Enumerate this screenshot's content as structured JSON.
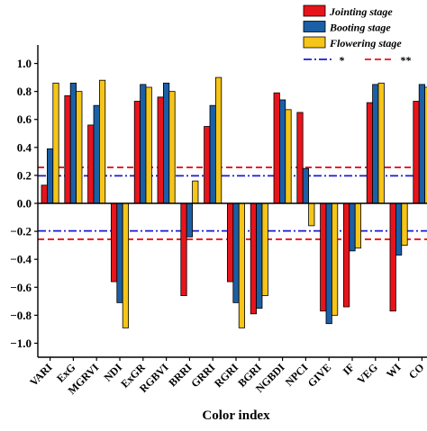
{
  "chart_data": {
    "type": "bar",
    "xlabel": "Color index",
    "ylabel": "",
    "ylim": [
      -1.1,
      1.1
    ],
    "yticks": [
      -1.0,
      -0.8,
      -0.6,
      -0.4,
      -0.2,
      0.0,
      0.2,
      0.4,
      0.6,
      0.8,
      1.0
    ],
    "ytick_labels": [
      "−1.0",
      "−0.8",
      "−0.6",
      "−0.4",
      "−0.2",
      "0.0",
      "0.2",
      "0.4",
      "0.6",
      "0.8",
      "1.0"
    ],
    "categories": [
      "VARI",
      "ExG",
      "MGRVI",
      "NDI",
      "ExGR",
      "RGBVI",
      "BRRI",
      "GRRI",
      "RGRI",
      "BGRI",
      "NGBDI",
      "NPCI",
      "GIVE",
      "IF",
      "VEG",
      "WI",
      "CO"
    ],
    "series": [
      {
        "name": "Jointing stage",
        "color": "#e8141c",
        "values": [
          0.13,
          0.77,
          0.56,
          -0.56,
          0.73,
          0.76,
          -0.66,
          0.55,
          -0.56,
          -0.79,
          0.79,
          0.65,
          -0.77,
          -0.74,
          0.72,
          -0.77,
          0.73
        ]
      },
      {
        "name": "Booting stage",
        "color": "#1b5fa6",
        "values": [
          0.39,
          0.86,
          0.7,
          -0.71,
          0.85,
          0.86,
          -0.24,
          0.7,
          -0.71,
          -0.75,
          0.74,
          0.25,
          -0.86,
          -0.34,
          0.85,
          -0.37,
          0.85
        ]
      },
      {
        "name": "Flowering stage",
        "color": "#f5c518",
        "values": [
          0.86,
          0.8,
          0.88,
          -0.89,
          0.83,
          0.8,
          0.16,
          0.9,
          -0.89,
          -0.66,
          0.67,
          -0.16,
          -0.8,
          -0.32,
          0.86,
          -0.3,
          0.83
        ]
      }
    ],
    "reference_lines": [
      {
        "name": "*",
        "values": [
          0.197,
          -0.197
        ],
        "color": "#1a1ad4",
        "style": "dash-dot"
      },
      {
        "name": "**",
        "values": [
          0.257,
          -0.257
        ],
        "color": "#e8141c",
        "style": "dashed"
      }
    ],
    "legend_placement": "top-right",
    "grid": false
  }
}
